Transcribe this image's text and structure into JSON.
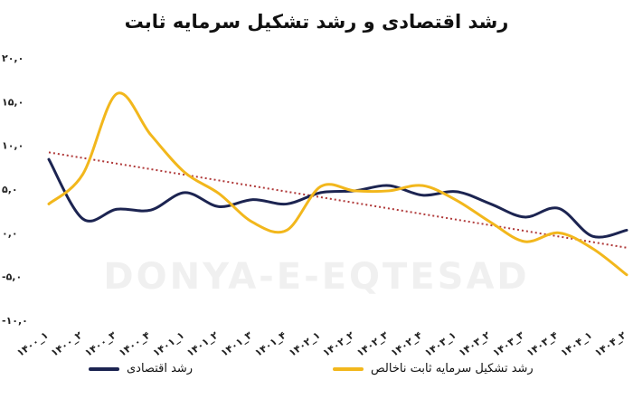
{
  "title": "رشد اقتصادی و رشد تشکیل سرمایه ثابت",
  "watermark": "DONYA-E-EQTESAD",
  "chart_data": {
    "type": "line",
    "title": "رشد اقتصادی و رشد تشکیل سرمایه ثابت",
    "categories": [
      "۱۴۰۰_۱",
      "۱۴۰۰_۲",
      "۱۴۰۰_۳",
      "۱۴۰۰_۴",
      "۱۴۰۱_۱",
      "۱۴۰۱_۲",
      "۱۴۰۱_۳",
      "۱۴۰۱_۴",
      "۱۴۰۲_۱",
      "۱۴۰۲_۲",
      "۱۴۰۲_۳",
      "۱۴۰۲_۴",
      "۱۴۰۳_۱",
      "۱۴۰۳_۲",
      "۱۴۰۳_۳",
      "۱۴۰۳_۴",
      "۱۴۰۴_۱",
      "۱۴۰۴_۲"
    ],
    "yticks": [
      "۲۰,۰",
      "۱۵,۰",
      "۱۰,۰",
      "۵,۰",
      "۰,۰",
      "-۵,۰",
      "-۱۰,۰"
    ],
    "ylim": [
      -10,
      20
    ],
    "series": [
      {
        "name": "رشد اقتصادی",
        "color": "#1c2451",
        "values": [
          8.4,
          1.6,
          2.7,
          2.6,
          4.6,
          3.0,
          3.8,
          3.3,
          4.6,
          4.8,
          5.4,
          4.3,
          4.7,
          3.3,
          1.8,
          2.8,
          -0.4,
          0.3
        ]
      },
      {
        "name": "رشد تشکیل سرمایه ثابت ناخالص",
        "color": "#f2b71c",
        "values": [
          3.3,
          6.7,
          15.9,
          11.2,
          6.9,
          4.5,
          1.2,
          0.3,
          5.3,
          4.8,
          4.8,
          5.4,
          3.7,
          1.2,
          -1.0,
          0.0,
          -1.8,
          -4.8
        ]
      }
    ],
    "trendline": {
      "color": "#b03a3a",
      "start": 9.2,
      "end": -1.7
    }
  },
  "legend": {
    "items": [
      {
        "label": "رشد اقتصادی",
        "color": "#1c2451"
      },
      {
        "label": "رشد تشکیل سرمایه ثابت ناخالص",
        "color": "#f2b71c"
      }
    ]
  }
}
